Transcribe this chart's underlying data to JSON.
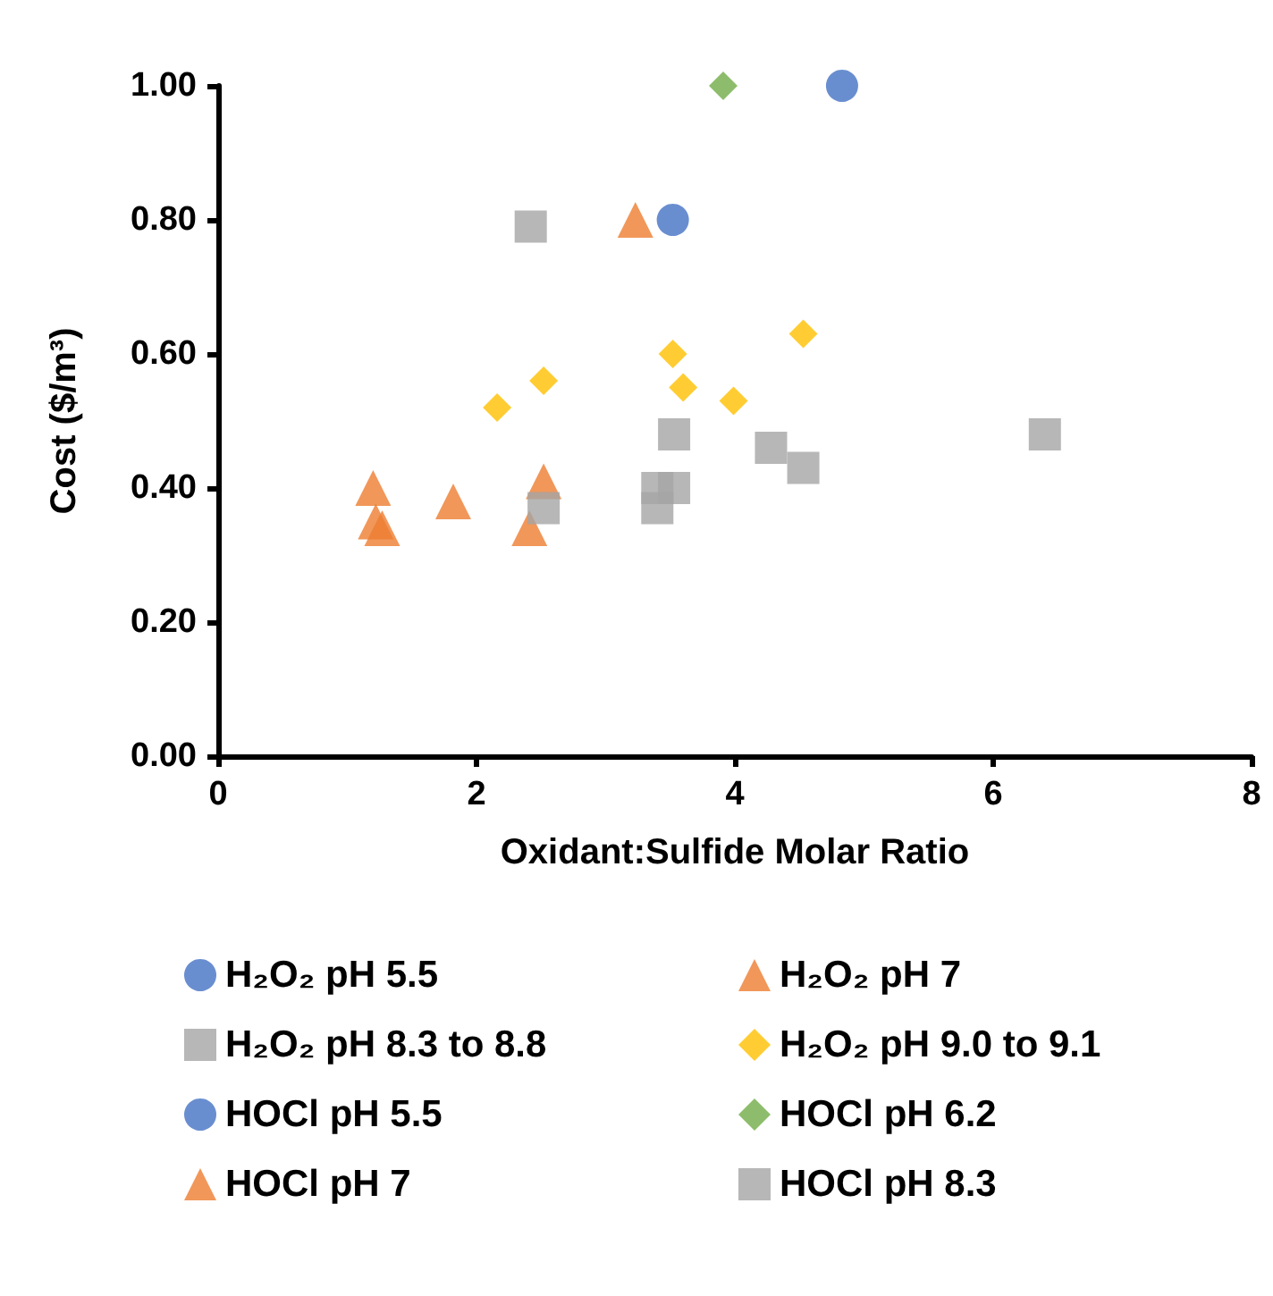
{
  "chart_data": {
    "type": "scatter",
    "xlabel": "Oxidant:Sulfide Molar Ratio",
    "ylabel": "Cost ($/m³)",
    "xlim": [
      0,
      8
    ],
    "xticks": [
      0,
      2,
      4,
      6,
      8
    ],
    "ylim": [
      0,
      1.0
    ],
    "yticks": [
      {
        "value": 0,
        "label": "0.00"
      },
      {
        "value": 0.2,
        "label": "0.20"
      },
      {
        "value": 0.4,
        "label": "0.40"
      },
      {
        "value": 0.6,
        "label": "0.60"
      },
      {
        "value": 0.8,
        "label": "0.80"
      },
      {
        "value": 1.0,
        "label": "1.00"
      }
    ],
    "grid": false,
    "legend": "bottom",
    "series": [
      {
        "name": "H₂O₂ pH 5.5",
        "color": "#4472c4",
        "marker": "circle",
        "x": [
          3.52
        ],
        "values": [
          0.8
        ]
      },
      {
        "name": "H₂O₂ pH 7",
        "color": "#ed7d31",
        "marker": "triangle",
        "x": [
          1.2,
          1.22,
          1.27,
          1.82,
          2.52,
          2.41
        ],
        "values": [
          0.4,
          0.35,
          0.34,
          0.38,
          0.41,
          0.34
        ]
      },
      {
        "name": "H₂O₂ pH 8.3 to 8.8",
        "color": "#a5a5a5",
        "marker": "square",
        "x": [
          3.53,
          4.28,
          4.53,
          3.53,
          3.4,
          3.4,
          2.52,
          6.4
        ],
        "values": [
          0.48,
          0.46,
          0.43,
          0.4,
          0.4,
          0.37,
          0.37,
          0.48
        ]
      },
      {
        "name": "H₂O₂ pH 9.0 to 9.1",
        "color": "#ffc000",
        "marker": "diamond",
        "x": [
          2.16,
          2.52,
          3.52,
          3.6,
          3.99,
          4.53
        ],
        "values": [
          0.52,
          0.56,
          0.6,
          0.55,
          0.53,
          0.63
        ]
      },
      {
        "name": "HOCl pH 5.5",
        "color": "#4472c4",
        "marker": "circle",
        "x": [
          4.83
        ],
        "values": [
          1.0
        ]
      },
      {
        "name": "HOCl pH 6.2",
        "color": "#70ad47",
        "marker": "diamond",
        "x": [
          3.91
        ],
        "values": [
          1.0
        ]
      },
      {
        "name": "HOCl pH 7",
        "color": "#ed7d31",
        "marker": "triangle",
        "x": [
          3.23
        ],
        "values": [
          0.8
        ]
      },
      {
        "name": "HOCl pH 8.3",
        "color": "#a5a5a5",
        "marker": "square",
        "x": [
          2.42
        ],
        "values": [
          0.79
        ]
      }
    ]
  }
}
